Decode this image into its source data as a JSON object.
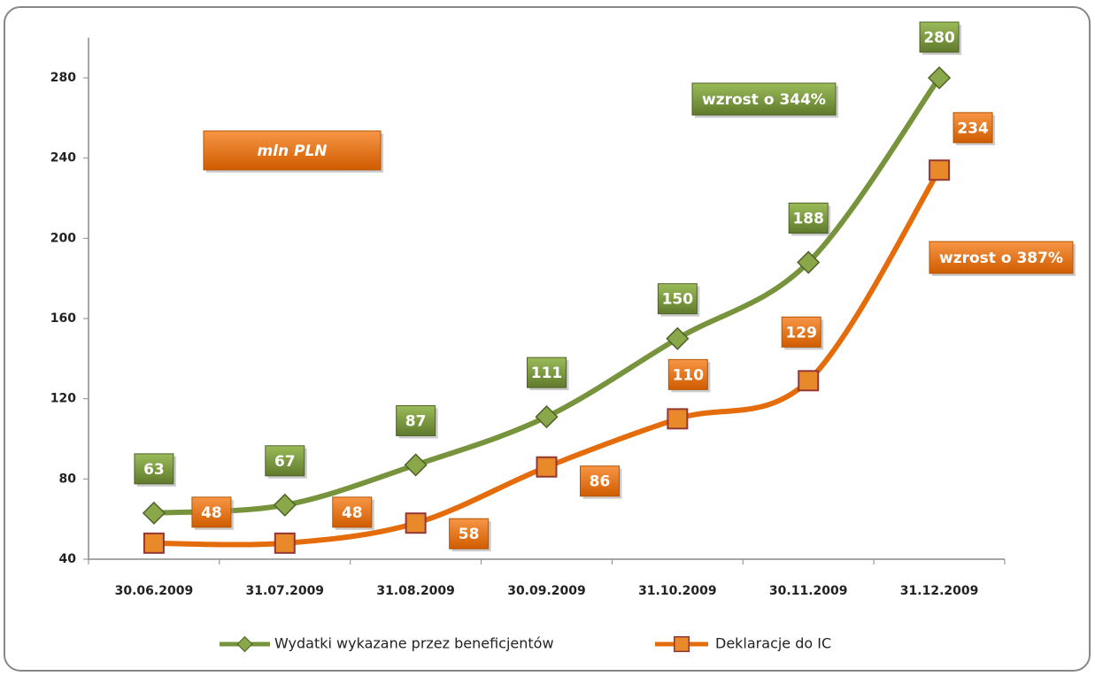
{
  "chart_data": {
    "type": "line",
    "categories": [
      "30.06.2009",
      "31.07.2009",
      "31.08.2009",
      "30.09.2009",
      "31.10.2009",
      "30.11.2009",
      "31.12.2009"
    ],
    "series": [
      {
        "name": "Wydatki wykazane przez beneficjentów",
        "color": "#77933c",
        "marker": "diamond",
        "values": [
          63,
          67,
          87,
          111,
          150,
          188,
          280
        ]
      },
      {
        "name": "Deklaracje do IC",
        "color": "#e46c0a",
        "marker": "square",
        "values": [
          48,
          48,
          58,
          86,
          110,
          129,
          234
        ]
      }
    ],
    "annotations": [
      "mln PLN",
      "wzrost o 344%",
      "wzrost o 387%"
    ],
    "ylim": [
      40,
      300
    ],
    "yticks": [
      40,
      80,
      120,
      160,
      200,
      240,
      280
    ],
    "grid": false,
    "legend": "bottom"
  }
}
